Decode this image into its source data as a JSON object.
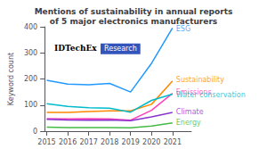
{
  "chart_data": {
    "type": "line",
    "title": "Mentions of sustainability in annual reports\nof 5 major electronics manufacturers",
    "ylabel": "Keyword count",
    "x": [
      2015,
      2016,
      2017,
      2018,
      2019,
      2020,
      2021
    ],
    "xlim": [
      2014.9,
      2021.9
    ],
    "xticks": [
      2015,
      2016,
      2017,
      2018,
      2019,
      2020,
      2021
    ],
    "ylim": [
      0,
      400
    ],
    "yticks": [
      0,
      100,
      200,
      300,
      400
    ],
    "grid": false,
    "series": [
      {
        "name": "ESG",
        "color": "#2299ff",
        "values": [
          195,
          180,
          178,
          183,
          150,
          260,
          395
        ]
      },
      {
        "name": "Sustainability",
        "color": "#ff8800",
        "values": [
          72,
          72,
          75,
          78,
          78,
          103,
          192
        ]
      },
      {
        "name": "Emissions",
        "color": "#ff44bb",
        "values": [
          48,
          47,
          48,
          47,
          42,
          80,
          145
        ]
      },
      {
        "name": "Water conservation",
        "color": "#00bbcc",
        "values": [
          105,
          95,
          90,
          88,
          73,
          118,
          142
        ]
      },
      {
        "name": "Climate",
        "color": "#8833cc",
        "values": [
          45,
          43,
          42,
          43,
          40,
          55,
          72
        ]
      },
      {
        "name": "Energy",
        "color": "#44bb44",
        "values": [
          15,
          14,
          14,
          14,
          13,
          20,
          32
        ]
      }
    ],
    "annotations": [
      {
        "text": "ESG",
        "x": 2021,
        "y": 390,
        "color": "#2299ff"
      },
      {
        "text": "Sustainability",
        "x": 2021,
        "y": 195,
        "color": "#ff8800"
      },
      {
        "text": "Emissions",
        "x": 2021,
        "y": 148,
        "color": "#ff44bb"
      },
      {
        "text": "Water conservation",
        "x": 2021,
        "y": 140,
        "color": "#00bbcc"
      },
      {
        "text": "Climate",
        "x": 2021,
        "y": 72,
        "color": "#8833cc"
      },
      {
        "text": "Energy",
        "x": 2021,
        "y": 33,
        "color": "#44bb44"
      },
      {
        "text": "IDTechEx"
      },
      {
        "text": "Research",
        "color": "#3355bb"
      }
    ]
  }
}
